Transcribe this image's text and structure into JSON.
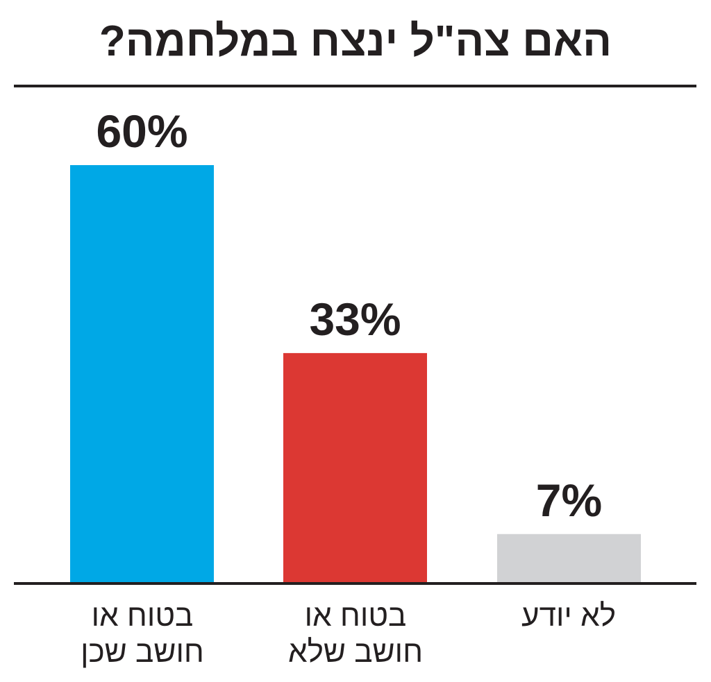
{
  "chart_data": {
    "type": "bar",
    "title": "האם צה\"ל ינצח במלחמה?",
    "categories": [
      "בטוח או חושב שכן",
      "בטוח או חושב שלא",
      "לא יודע"
    ],
    "category_lines": [
      [
        "בטוח או",
        "חושב שכן"
      ],
      [
        "בטוח או",
        "חושב שלא"
      ],
      [
        "לא יודע"
      ]
    ],
    "values": [
      60,
      33,
      7
    ],
    "value_labels": [
      "60%",
      "33%",
      "7%"
    ],
    "colors": [
      "#00a8e6",
      "#dc3833",
      "#d1d2d4"
    ],
    "xlabel": "",
    "ylabel": "",
    "ylim": [
      0,
      60
    ],
    "grid": false
  }
}
